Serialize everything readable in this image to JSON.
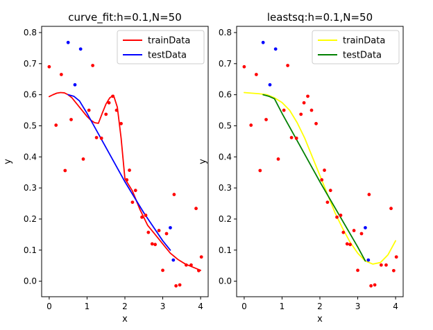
{
  "chart_data": [
    {
      "type": "line",
      "title": "curve_fit:h=0.1,N=50",
      "xlabel": "x",
      "ylabel": "y",
      "xlim": [
        -0.2,
        4.2
      ],
      "ylim": [
        -0.05,
        0.82
      ],
      "xticks": [
        0,
        1,
        2,
        3,
        4
      ],
      "yticks": [
        0.0,
        0.1,
        0.2,
        0.3,
        0.4,
        0.5,
        0.6,
        0.7,
        0.8
      ],
      "grid": false,
      "legend_position": "top-right",
      "series": [
        {
          "name": "trainData",
          "color": "#ff0000",
          "x": [
            0.0,
            0.1,
            0.2,
            0.3,
            0.4,
            0.5,
            0.6,
            0.7,
            0.8,
            0.9,
            1.0,
            1.1,
            1.2,
            1.3,
            1.4,
            1.5,
            1.6,
            1.7,
            1.8,
            1.9,
            2.0,
            2.2,
            2.4,
            2.6,
            2.8,
            3.0,
            3.2,
            3.4,
            3.6,
            3.8,
            4.0
          ],
          "y": [
            0.594,
            0.6,
            0.605,
            0.607,
            0.606,
            0.6,
            0.59,
            0.575,
            0.56,
            0.545,
            0.53,
            0.518,
            0.51,
            0.508,
            0.54,
            0.57,
            0.59,
            0.598,
            0.56,
            0.46,
            0.33,
            0.29,
            0.23,
            0.18,
            0.15,
            0.12,
            0.09,
            0.07,
            0.055,
            0.045,
            0.035
          ]
        },
        {
          "name": "testData",
          "color": "#0000ff",
          "x": [
            0.5,
            0.65,
            0.8,
            1.0,
            1.5,
            2.0,
            2.5,
            3.0,
            3.2
          ],
          "y": [
            0.6,
            0.595,
            0.58,
            0.54,
            0.43,
            0.32,
            0.22,
            0.13,
            0.1
          ]
        }
      ],
      "train_points": {
        "color": "#ff0000",
        "x": [
          0.0,
          0.18,
          0.32,
          0.42,
          0.58,
          0.9,
          1.05,
          1.15,
          1.25,
          1.38,
          1.5,
          1.58,
          1.68,
          1.78,
          1.9,
          2.05,
          2.12,
          2.2,
          2.28,
          2.45,
          2.55,
          2.62,
          2.72,
          2.8,
          2.9,
          3.0,
          3.1,
          3.3,
          3.35,
          3.45,
          3.62,
          3.75,
          3.88,
          3.95,
          4.02
        ],
        "y": [
          0.69,
          0.502,
          0.665,
          0.356,
          0.52,
          0.393,
          0.55,
          0.694,
          0.462,
          0.46,
          0.537,
          0.574,
          0.595,
          0.55,
          0.507,
          0.326,
          0.357,
          0.254,
          0.292,
          0.206,
          0.212,
          0.157,
          0.12,
          0.118,
          0.163,
          0.035,
          0.153,
          0.279,
          -0.015,
          -0.012,
          0.052,
          0.052,
          0.234,
          0.034,
          0.078
        ]
      },
      "test_points": {
        "color": "#0000ff",
        "x": [
          0.5,
          0.68,
          0.83,
          3.2,
          3.28
        ],
        "y": [
          0.768,
          0.632,
          0.747,
          0.172,
          0.068
        ]
      }
    },
    {
      "type": "line",
      "title": "leastsq:h=0.1,N=50",
      "xlabel": "x",
      "ylabel": "y",
      "xlim": [
        -0.2,
        4.2
      ],
      "ylim": [
        -0.05,
        0.82
      ],
      "xticks": [
        0,
        1,
        2,
        3,
        4
      ],
      "yticks": [
        0.0,
        0.1,
        0.2,
        0.3,
        0.4,
        0.5,
        0.6,
        0.7,
        0.8
      ],
      "grid": false,
      "legend_position": "top-right",
      "series": [
        {
          "name": "trainData",
          "color": "#ffff00",
          "x": [
            0.0,
            0.2,
            0.4,
            0.6,
            0.8,
            1.0,
            1.2,
            1.4,
            1.6,
            1.8,
            2.0,
            2.2,
            2.4,
            2.6,
            2.8,
            3.0,
            3.2,
            3.4,
            3.6,
            3.8,
            4.0
          ],
          "y": [
            0.607,
            0.605,
            0.603,
            0.6,
            0.59,
            0.575,
            0.55,
            0.51,
            0.46,
            0.4,
            0.34,
            0.28,
            0.22,
            0.17,
            0.125,
            0.09,
            0.065,
            0.055,
            0.06,
            0.085,
            0.13
          ]
        },
        {
          "name": "testData",
          "color": "#008000",
          "x": [
            0.5,
            0.65,
            0.8,
            1.0,
            1.5,
            2.0,
            2.5,
            3.0,
            3.2
          ],
          "y": [
            0.6,
            0.595,
            0.587,
            0.54,
            0.43,
            0.32,
            0.215,
            0.11,
            0.065
          ]
        }
      ],
      "train_points": {
        "color": "#ff0000",
        "x": [
          0.0,
          0.18,
          0.32,
          0.42,
          0.58,
          0.9,
          1.05,
          1.15,
          1.25,
          1.38,
          1.5,
          1.58,
          1.68,
          1.78,
          1.9,
          2.05,
          2.12,
          2.2,
          2.28,
          2.45,
          2.55,
          2.62,
          2.72,
          2.8,
          2.9,
          3.0,
          3.1,
          3.3,
          3.35,
          3.45,
          3.62,
          3.75,
          3.88,
          3.95,
          4.02
        ],
        "y": [
          0.69,
          0.502,
          0.665,
          0.356,
          0.52,
          0.393,
          0.55,
          0.694,
          0.462,
          0.46,
          0.537,
          0.574,
          0.595,
          0.55,
          0.507,
          0.326,
          0.357,
          0.254,
          0.292,
          0.206,
          0.212,
          0.157,
          0.12,
          0.118,
          0.163,
          0.035,
          0.153,
          0.279,
          -0.015,
          -0.012,
          0.052,
          0.052,
          0.234,
          0.034,
          0.078
        ]
      },
      "test_points": {
        "color": "#0000ff",
        "x": [
          0.5,
          0.68,
          0.83,
          3.2,
          3.28
        ],
        "y": [
          0.768,
          0.632,
          0.747,
          0.172,
          0.068
        ]
      }
    }
  ]
}
